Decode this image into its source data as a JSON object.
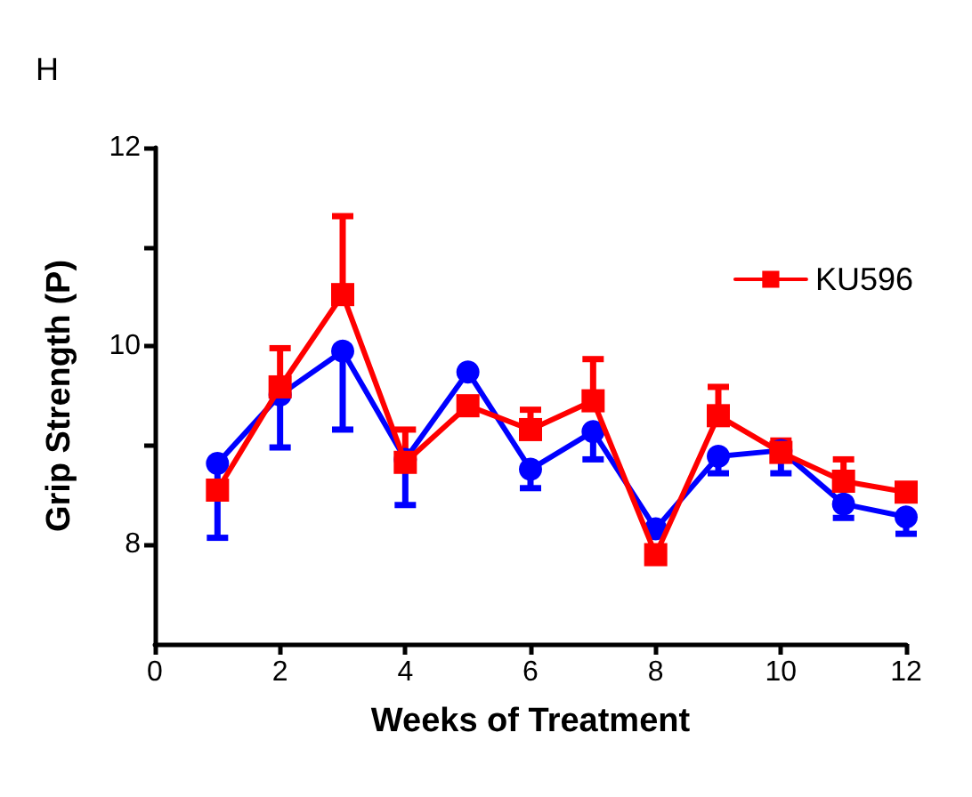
{
  "chart_data": {
    "type": "line",
    "annotations": [
      "H"
    ],
    "xlabel": "Weeks of Treatment",
    "ylabel": "Grip Strength (P)",
    "x": [
      1,
      2,
      3,
      4,
      5,
      6,
      7,
      8,
      9,
      10,
      11,
      12
    ],
    "series": [
      {
        "color": "#0000ff",
        "marker": "circle",
        "values": [
          8.82,
          9.51,
          9.95,
          8.86,
          9.74,
          8.76,
          9.14,
          8.16,
          8.89,
          8.95,
          8.41,
          8.28
        ],
        "errors": [
          [
            8.07,
            8.82
          ],
          [
            8.98,
            9.51
          ],
          [
            9.16,
            9.95
          ],
          [
            8.4,
            8.86
          ],
          null,
          [
            8.57,
            8.76
          ],
          [
            8.86,
            9.14
          ],
          null,
          [
            8.72,
            8.89
          ],
          [
            8.72,
            8.95
          ],
          [
            8.27,
            8.41
          ],
          [
            8.11,
            8.28
          ]
        ]
      },
      {
        "name": "KU596",
        "color": "#ff0000",
        "marker": "square",
        "values": [
          8.55,
          9.59,
          10.52,
          8.83,
          9.4,
          9.16,
          9.45,
          7.9,
          9.3,
          8.93,
          8.64,
          8.53
        ],
        "errors": [
          null,
          [
            9.59,
            9.98
          ],
          [
            10.52,
            11.31
          ],
          [
            8.83,
            9.16
          ],
          null,
          [
            9.16,
            9.36
          ],
          [
            9.45,
            9.87
          ],
          null,
          [
            9.3,
            9.59
          ],
          [
            8.93,
            9.05
          ],
          [
            8.64,
            8.86
          ],
          null
        ]
      }
    ],
    "xlim": [
      0,
      12
    ],
    "xticks": [
      0,
      2,
      4,
      6,
      8,
      10,
      12
    ],
    "ylim": [
      7,
      12
    ],
    "yticks": [
      8,
      {
        "value": 9,
        "label": null
      },
      10,
      {
        "value": 11,
        "label": null
      },
      12
    ],
    "grid": false,
    "legend": "top right",
    "line_style": "solid"
  }
}
